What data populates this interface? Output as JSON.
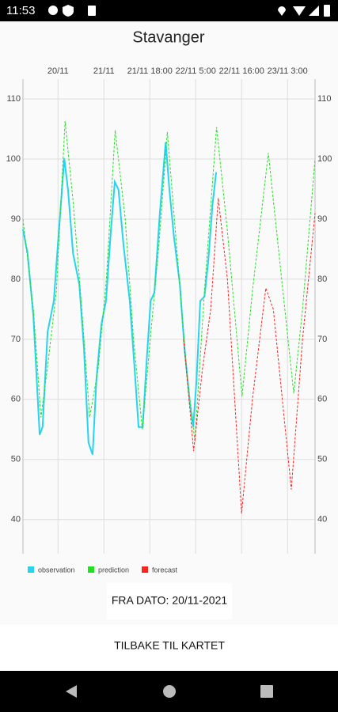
{
  "status_bar": {
    "time": "11:53"
  },
  "header": {
    "title": "Stavanger"
  },
  "chart_data": {
    "type": "line",
    "xlim": [
      0,
      70
    ],
    "xticks": [
      {
        "value": 8.4,
        "label": "20/11"
      },
      {
        "value": 19.4,
        "label": "21/11"
      },
      {
        "value": 30.4,
        "label": "21/11 18:00"
      },
      {
        "value": 41.4,
        "label": "22/11 5:00"
      },
      {
        "value": 52.4,
        "label": "22/11 16:00"
      },
      {
        "value": 63.4,
        "label": "23/11 3:00"
      }
    ],
    "ylim": [
      34.3,
      113.3
    ],
    "yticks": [
      40,
      50,
      60,
      70,
      80,
      90,
      100,
      110
    ],
    "grid": true,
    "series": [
      {
        "name": "observation",
        "color": "#26d4f0",
        "dashed": false,
        "x": [
          0,
          1.1,
          2.5,
          4.0,
          4.7,
          5.9,
          7.4,
          8.5,
          9.9,
          10.8,
          12.0,
          13.5,
          14.6,
          15.7,
          16.7,
          17.6,
          18.8,
          19.9,
          21.1,
          22.0,
          22.9,
          24.1,
          25.6,
          26.8,
          27.7,
          28.7,
          29.6,
          30.6,
          31.5,
          32.8,
          34.2,
          35.1,
          36.2,
          37.6,
          38.7,
          40.0,
          40.8,
          41.6,
          42.5,
          43.5,
          44.4,
          45.4,
          46.3
        ],
        "values": [
          88.3,
          84.3,
          73.8,
          54.1,
          55.4,
          71.2,
          76.4,
          87.0,
          100.1,
          94.9,
          84.3,
          79.1,
          68.6,
          52.8,
          50.8,
          63.3,
          72.5,
          76.4,
          88.3,
          96.2,
          94.9,
          85.7,
          76.4,
          64.6,
          55.4,
          55.4,
          65.9,
          76.4,
          77.8,
          90.9,
          102.8,
          94.9,
          87.0,
          79.1,
          68.6,
          59.3,
          55.4,
          63.3,
          76.4,
          77.1,
          83.0,
          92.2,
          97.8
        ]
      },
      {
        "name": "prediction",
        "color": "#22e022",
        "dashed": true,
        "x": [
          0,
          2.5,
          4.3,
          6,
          8,
          10.1,
          12,
          14,
          16,
          18,
          20,
          22.1,
          24.5,
          26.5,
          28.6,
          30.5,
          32.5,
          34.6,
          37,
          39.2,
          41.2,
          43.5,
          46.4,
          49,
          52.5,
          55,
          58.8,
          62,
          64.9,
          67,
          70
        ],
        "values": [
          90,
          75,
          57,
          66,
          78,
          106.3,
          93,
          76,
          57,
          65,
          80,
          104.8,
          90,
          70,
          55,
          70,
          85,
          104.5,
          84,
          65,
          53,
          78,
          105.3,
          88,
          60.5,
          78,
          101,
          80,
          61,
          75,
          100
        ]
      },
      {
        "name": "forecast",
        "color": "#ff2020",
        "dashed": true,
        "x": [
          38.5,
          40.9,
          43,
          45,
          46.8,
          49,
          52.4,
          55,
          58.2,
          60,
          64.3,
          67,
          70
        ],
        "values": [
          70,
          51.4,
          65,
          75,
          93.5,
          80,
          41,
          60,
          78.5,
          75,
          45,
          70,
          91
        ]
      }
    ]
  },
  "buttons": {
    "from_date": "FRA DATO: 20/11-2021",
    "back": "TILBAKE TIL KARTET"
  }
}
